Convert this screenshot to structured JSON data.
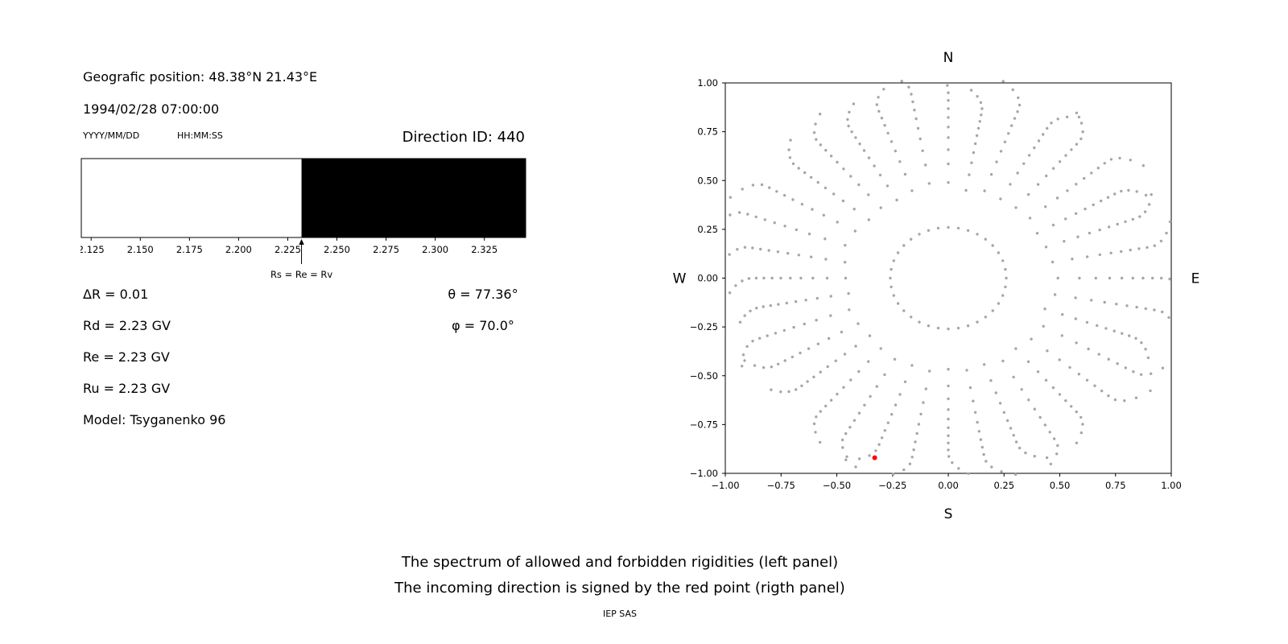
{
  "left_panel": {
    "position_label": "Geografic position: 48.38°N 21.43°E",
    "datetime": "1994/02/28 07:00:00",
    "date_format_hint": "YYYY/MM/DD",
    "time_format_hint": "HH:MM:SS",
    "direction_id": "Direction ID: 440",
    "params_left": [
      "ΔR = 0.01",
      "Rd = 2.23 GV",
      "Re = 2.23 GV",
      "Ru = 2.23 GV",
      "Model: Tsyganenko 96"
    ],
    "params_right": [
      "θ = 77.36°",
      "φ = 70.0°"
    ]
  },
  "captions": {
    "line1": "The spectrum of allowed and forbidden rigidities (left panel)",
    "line2": "The incoming direction is signed by the red point (rigth panel)",
    "credit": "IEP SAS"
  },
  "chart_data": [
    {
      "type": "area",
      "panel": "left-spectrum",
      "x_range": [
        2.12,
        2.346
      ],
      "x_ticks": [
        2.125,
        2.15,
        2.175,
        2.2,
        2.225,
        2.25,
        2.275,
        2.3,
        2.325
      ],
      "x_tick_labels": [
        "2.125",
        "2.150",
        "2.175",
        "2.200",
        "2.225",
        "2.250",
        "2.275",
        "2.300",
        "2.325"
      ],
      "regions": [
        {
          "name": "allowed",
          "from": 2.12,
          "to": 2.232,
          "color": "#ffffff"
        },
        {
          "name": "forbidden",
          "from": 2.232,
          "to": 2.346,
          "color": "#000000"
        }
      ],
      "marker_x": 2.232,
      "marker_label": "Rs = Re = Rv"
    },
    {
      "type": "scatter",
      "panel": "right-direction-map",
      "xlim": [
        -1.0,
        1.0
      ],
      "ylim": [
        -1.0,
        1.0
      ],
      "tick_values": [
        -1.0,
        -0.75,
        -0.5,
        -0.25,
        0.0,
        0.25,
        0.5,
        0.75,
        1.0
      ],
      "tick_labels": [
        "−1.00",
        "−0.75",
        "−0.50",
        "−0.25",
        "0.00",
        "0.25",
        "0.50",
        "0.75",
        "1.00"
      ],
      "compass": {
        "north": "N",
        "south": "S",
        "west": "W",
        "east": "E"
      },
      "spokes": {
        "count": 36,
        "inner_radius": 0.26,
        "outer_radius": 1.03,
        "points_per_spoke": 14,
        "cluster_exponent": 0.5,
        "tip_hook_deg": 6,
        "color": "#a6a6a6",
        "dot_radius": 1.7
      },
      "incoming_direction": {
        "x": -0.33,
        "y": -0.92,
        "color": "#ff0000",
        "dot_radius": 3
      }
    }
  ]
}
